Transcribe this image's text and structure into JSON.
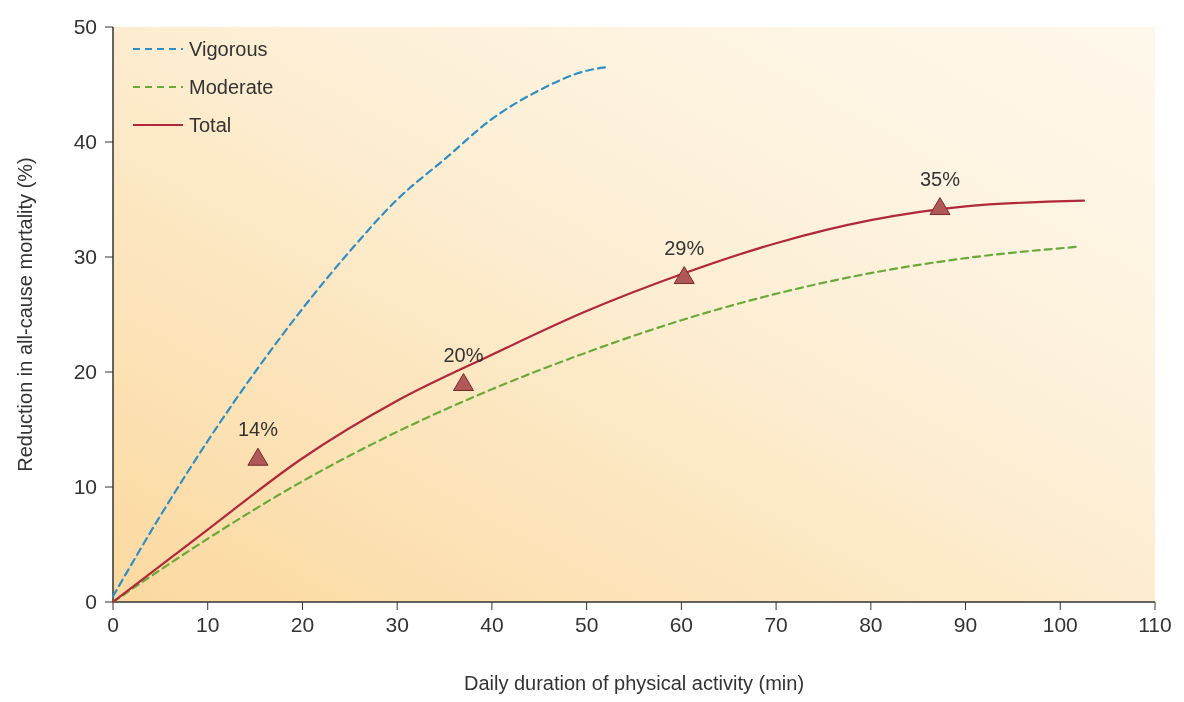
{
  "chart_data": {
    "type": "line",
    "xlabel": "Daily duration of physical activity (min)",
    "ylabel": "Reduction in all-cause mortality (%)",
    "xlim": [
      0,
      110
    ],
    "ylim": [
      0,
      50
    ],
    "xticks": [
      0,
      10,
      20,
      30,
      40,
      50,
      60,
      70,
      80,
      90,
      100,
      110
    ],
    "yticks": [
      0,
      10,
      20,
      30,
      40,
      50
    ],
    "grid": false,
    "legend": "top left",
    "marker": "none",
    "series": [
      {
        "name": "Vigorous",
        "color": "#2f8fc4",
        "line_style": "dashed",
        "x": [
          0,
          5,
          10,
          15,
          20,
          25,
          30,
          35,
          40,
          45,
          50,
          52
        ],
        "values": [
          0.5,
          7.5,
          14,
          20,
          25.5,
          30.5,
          35,
          38.5,
          42,
          44.5,
          46.2,
          46.5
        ]
      },
      {
        "name": "Moderate",
        "color": "#6aaa3a",
        "line_style": "dashed",
        "x": [
          0,
          10,
          20,
          30,
          40,
          50,
          60,
          70,
          80,
          90,
          102
        ],
        "values": [
          0,
          5.5,
          10.5,
          14.8,
          18.5,
          21.7,
          24.5,
          26.8,
          28.6,
          29.9,
          30.9
        ]
      },
      {
        "name": "Total",
        "color": "#b0283a",
        "line_style": "solid",
        "x": [
          0,
          10,
          20,
          30,
          40,
          50,
          60,
          70,
          80,
          90,
          102.5
        ],
        "values": [
          0,
          6.3,
          12.5,
          17.5,
          21.5,
          25.3,
          28.5,
          31.2,
          33.2,
          34.4,
          34.9
        ]
      },
      {
        "type": "scatter",
        "color": "#b05858",
        "marker": "triangle",
        "x": [
          15.3,
          37,
          60.3,
          87.3
        ],
        "values": [
          12.5,
          19,
          28.3,
          34.3
        ]
      }
    ],
    "annotations": [
      {
        "text": "14%",
        "x": 15.3,
        "y": 12.5
      },
      {
        "text": "20%",
        "x": 37,
        "y": 19
      },
      {
        "text": "29%",
        "x": 60.3,
        "y": 28.3
      },
      {
        "text": "35%",
        "x": 87.3,
        "y": 34.3
      }
    ]
  }
}
